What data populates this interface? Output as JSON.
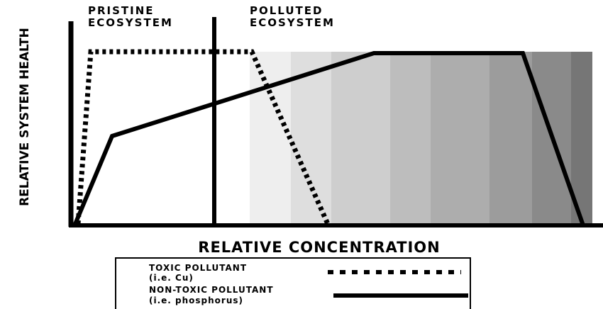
{
  "header": {
    "pristine": [
      "PRISTINE",
      "ECOSYSTEM"
    ],
    "polluted": [
      "POLLUTED",
      "ECOSYSTEM"
    ]
  },
  "axes": {
    "y_label": "RELATIVE SYSTEM HEALTH",
    "x_label": "RELATIVE CONCENTRATION"
  },
  "legend": [
    {
      "label": "TOXIC POLLUTANT",
      "example": "(i.e. Cu)"
    },
    {
      "label": "NON-TOXIC POLLUTANT",
      "example": "(i.e. phosphorus)"
    }
  ]
}
